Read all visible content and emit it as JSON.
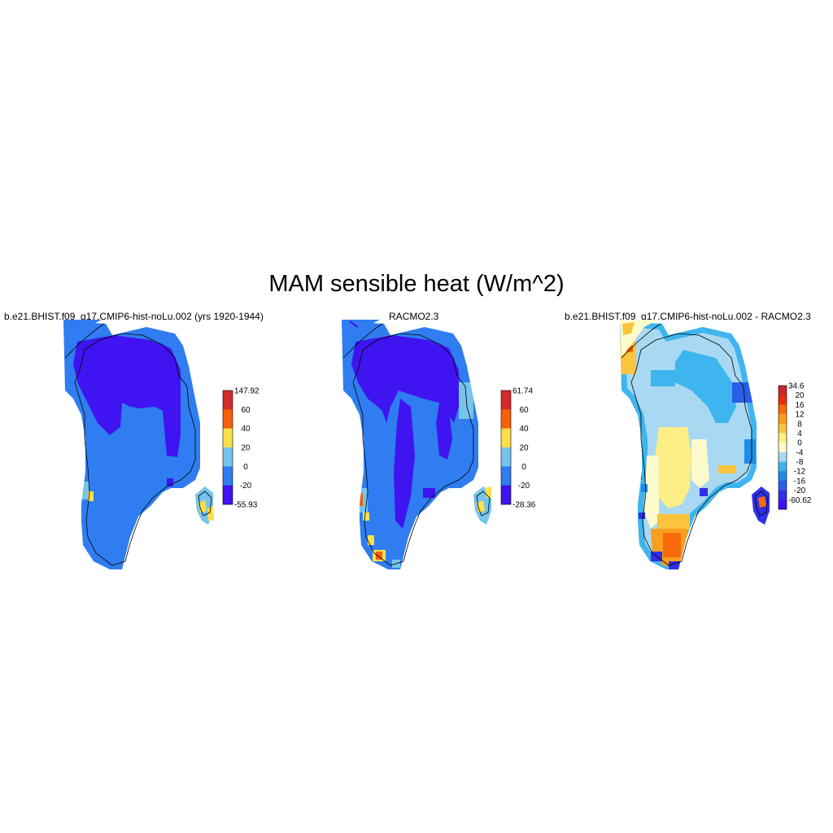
{
  "title": "MAM sensible heat (W/m^2)",
  "panels": [
    {
      "title": "b.e21.BHIST.f09_g17.CMIP6-hist-noLu.002 (yrs 1920-1944)",
      "colorbar": {
        "labels": [
          "147.92",
          "60",
          "40",
          "20",
          "0",
          "-20",
          "-55.93"
        ],
        "colors": [
          "#d42a2a",
          "#f5600c",
          "#fbe04a",
          "#76c3ee",
          "#2f7df0",
          "#3f14f0"
        ]
      }
    },
    {
      "title": "RACMO2.3",
      "colorbar": {
        "labels": [
          "61.74",
          "60",
          "40",
          "20",
          "0",
          "-20",
          "-28.36"
        ],
        "colors": [
          "#d42a2a",
          "#f5600c",
          "#fbe04a",
          "#76c3ee",
          "#2f7df0",
          "#3f14f0"
        ]
      }
    },
    {
      "title": "b.e21.BHIST.f09_g17.CMIP6-hist-noLu.002 - RACMO2.3",
      "colorbar": {
        "labels": [
          "34.6",
          "20",
          "16",
          "12",
          "8",
          "4",
          "0",
          "-4",
          "-8",
          "-12",
          "-16",
          "-20",
          "-60.62"
        ],
        "colors": [
          "#c8282a",
          "#ea2a0f",
          "#f86a0a",
          "#fa9e1e",
          "#fbc43c",
          "#fdee85",
          "#fdfbcc",
          "#a9d9f2",
          "#3fb5ef",
          "#1f8ce8",
          "#2a5ee8",
          "#3030e8",
          "#4010f0"
        ]
      }
    }
  ]
}
